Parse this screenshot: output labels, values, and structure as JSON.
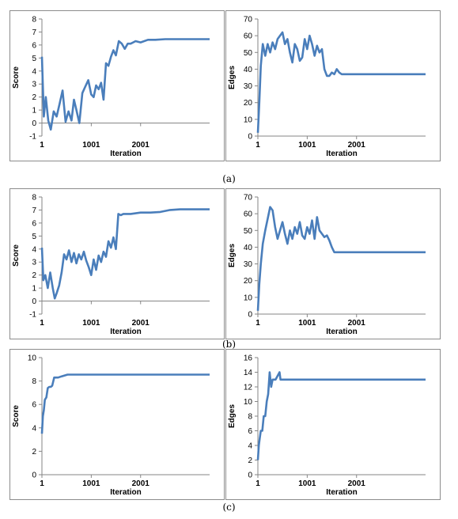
{
  "captions": [
    "(a)",
    "(b)",
    "(c)"
  ],
  "chart_data": [
    {
      "type": "line",
      "row": 0,
      "col": 0,
      "xlabel": "Iteration",
      "ylabel": "Score",
      "xticks": [
        "1",
        "1001",
        "2001"
      ],
      "xlim": [
        1,
        3400
      ],
      "ylim": [
        -1,
        8
      ],
      "yticks": [
        -1,
        0,
        1,
        2,
        3,
        4,
        5,
        6,
        7,
        8
      ],
      "series": [
        {
          "x": [
            1,
            40,
            80,
            130,
            180,
            240,
            300,
            360,
            420,
            480,
            540,
            600,
            650,
            700,
            760,
            820,
            880,
            940,
            1000,
            1050,
            1100,
            1150,
            1200,
            1250,
            1300,
            1350,
            1400,
            1450,
            1500,
            1560,
            1620,
            1680,
            1740,
            1800,
            1850,
            1900,
            2000,
            2150,
            2300,
            2500,
            2800,
            3100,
            3400
          ],
          "y": [
            5.1,
            0.5,
            2.0,
            0.2,
            -0.5,
            0.9,
            0.5,
            1.5,
            2.5,
            0.1,
            0.9,
            0.2,
            1.8,
            1.0,
            0.0,
            2.3,
            2.8,
            3.3,
            2.2,
            2.0,
            2.9,
            2.6,
            3.1,
            1.8,
            4.6,
            4.4,
            5.1,
            5.6,
            5.2,
            6.3,
            6.1,
            5.7,
            6.1,
            6.1,
            6.2,
            6.3,
            6.2,
            6.4,
            6.4,
            6.45,
            6.45,
            6.45,
            6.45
          ]
        }
      ]
    },
    {
      "type": "line",
      "row": 0,
      "col": 1,
      "xlabel": "Iteration",
      "ylabel": "Edges",
      "xticks": [
        "1",
        "1001",
        "2001"
      ],
      "xlim": [
        1,
        3400
      ],
      "ylim": [
        0,
        70
      ],
      "yticks": [
        0,
        10,
        20,
        30,
        40,
        50,
        60,
        70
      ],
      "series": [
        {
          "x": [
            1,
            30,
            60,
            100,
            150,
            200,
            250,
            300,
            350,
            400,
            450,
            500,
            550,
            600,
            650,
            700,
            750,
            800,
            850,
            900,
            950,
            1000,
            1050,
            1100,
            1150,
            1200,
            1250,
            1300,
            1350,
            1400,
            1450,
            1500,
            1550,
            1600,
            1650,
            1700,
            1800,
            2000,
            2300,
            2600,
            2900,
            3400
          ],
          "y": [
            2,
            20,
            42,
            55,
            48,
            55,
            50,
            56,
            52,
            58,
            60,
            62,
            55,
            58,
            50,
            44,
            55,
            52,
            45,
            47,
            58,
            52,
            60,
            55,
            48,
            54,
            50,
            52,
            40,
            36,
            36,
            38,
            37,
            40,
            38,
            37,
            37,
            37,
            37,
            37,
            37,
            37
          ]
        }
      ]
    },
    {
      "type": "line",
      "row": 1,
      "col": 0,
      "xlabel": "Iteration",
      "ylabel": "Score",
      "xticks": [
        "1",
        "1001",
        "2001"
      ],
      "xlim": [
        1,
        3400
      ],
      "ylim": [
        -1,
        8
      ],
      "yticks": [
        -1,
        0,
        1,
        2,
        3,
        4,
        5,
        6,
        7,
        8
      ],
      "series": [
        {
          "x": [
            1,
            30,
            70,
            120,
            170,
            220,
            260,
            300,
            350,
            400,
            450,
            500,
            550,
            600,
            650,
            700,
            750,
            800,
            850,
            900,
            950,
            1000,
            1050,
            1100,
            1150,
            1200,
            1250,
            1300,
            1350,
            1400,
            1450,
            1500,
            1550,
            1600,
            1650,
            1700,
            1800,
            2000,
            2200,
            2400,
            2600,
            2800,
            3100,
            3400
          ],
          "y": [
            4.1,
            1.6,
            2.0,
            1.0,
            2.2,
            1.0,
            0.2,
            0.6,
            1.2,
            2.2,
            3.6,
            3.2,
            3.9,
            3.0,
            3.7,
            2.9,
            3.6,
            3.2,
            3.8,
            3.1,
            2.6,
            2.0,
            3.2,
            2.4,
            3.5,
            3.0,
            3.8,
            3.4,
            4.6,
            4.1,
            4.9,
            4.0,
            6.7,
            6.6,
            6.7,
            6.7,
            6.7,
            6.8,
            6.8,
            6.85,
            7.0,
            7.05,
            7.05,
            7.05
          ]
        }
      ]
    },
    {
      "type": "line",
      "row": 1,
      "col": 1,
      "xlabel": "Iteration",
      "ylabel": "Edges",
      "xticks": [
        "1",
        "1001",
        "2001"
      ],
      "xlim": [
        1,
        3400
      ],
      "ylim": [
        0,
        70
      ],
      "yticks": [
        0,
        10,
        20,
        30,
        40,
        50,
        60,
        70
      ],
      "series": [
        {
          "x": [
            1,
            30,
            60,
            100,
            150,
            200,
            250,
            300,
            350,
            400,
            450,
            500,
            550,
            600,
            650,
            700,
            750,
            800,
            850,
            900,
            950,
            1000,
            1050,
            1100,
            1150,
            1200,
            1250,
            1300,
            1350,
            1400,
            1450,
            1500,
            1550,
            1600,
            1650,
            1700,
            1800,
            2000,
            2400,
            2800,
            3400
          ],
          "y": [
            2,
            18,
            30,
            42,
            50,
            57,
            64,
            62,
            52,
            45,
            50,
            55,
            48,
            42,
            50,
            45,
            52,
            48,
            55,
            47,
            45,
            52,
            48,
            56,
            45,
            58,
            50,
            48,
            46,
            47,
            44,
            40,
            37,
            37,
            37,
            37,
            37,
            37,
            37,
            37,
            37
          ]
        }
      ]
    },
    {
      "type": "line",
      "row": 2,
      "col": 0,
      "xlabel": "Iteration",
      "ylabel": "Score",
      "xticks": [
        "1",
        "1001",
        "2001"
      ],
      "xlim": [
        1,
        3400
      ],
      "ylim": [
        0,
        10
      ],
      "yticks": [
        0,
        2,
        4,
        6,
        8,
        10
      ],
      "series": [
        {
          "x": [
            1,
            20,
            40,
            60,
            90,
            120,
            150,
            180,
            210,
            250,
            290,
            330,
            400,
            480,
            520,
            3400
          ],
          "y": [
            3.5,
            5.0,
            5.5,
            6.4,
            6.6,
            7.4,
            7.5,
            7.5,
            7.6,
            8.3,
            8.3,
            8.3,
            8.4,
            8.5,
            8.55,
            8.55
          ]
        }
      ]
    },
    {
      "type": "line",
      "row": 2,
      "col": 1,
      "xlabel": "Iteration",
      "ylabel": "Edges",
      "xticks": [
        "1",
        "1001",
        "2001"
      ],
      "xlim": [
        1,
        3400
      ],
      "ylim": [
        0,
        16
      ],
      "yticks": [
        0,
        2,
        4,
        6,
        8,
        10,
        12,
        14,
        16
      ],
      "series": [
        {
          "x": [
            1,
            20,
            40,
            60,
            90,
            120,
            150,
            180,
            210,
            240,
            270,
            300,
            320,
            360,
            440,
            460,
            3400
          ],
          "y": [
            2,
            4,
            5,
            6,
            6,
            8,
            8,
            10,
            11,
            14,
            12,
            13,
            13,
            13,
            14,
            13,
            13
          ]
        }
      ]
    }
  ]
}
